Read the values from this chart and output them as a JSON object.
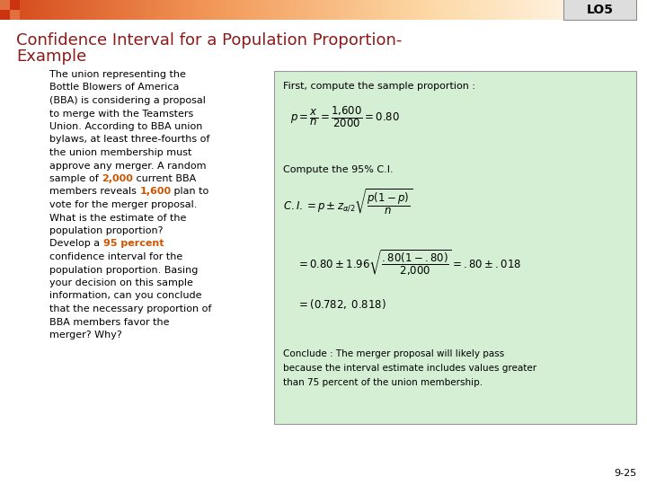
{
  "title_line1": "Confidence Interval for a Population Proportion-",
  "title_line2": "Example",
  "title_color": "#8B1A1A",
  "background_color": "#FFFFFF",
  "lo5_text": "LO5",
  "highlight_color": "#CC5500",
  "green_box_color": "#D4EFD4",
  "right_text_top": "First, compute the sample proportion :",
  "right_text2": "Compute the 95% C.I.",
  "conclude_text_1": "Conclude : The merger proposal will likely pass",
  "conclude_text_2": "because the interval estimate includes values greater",
  "conclude_text_3": "than 75 percent of the union membership.",
  "page_num": "9-25",
  "font_size_title": 13,
  "font_size_body": 8.0,
  "font_size_right": 8.0
}
